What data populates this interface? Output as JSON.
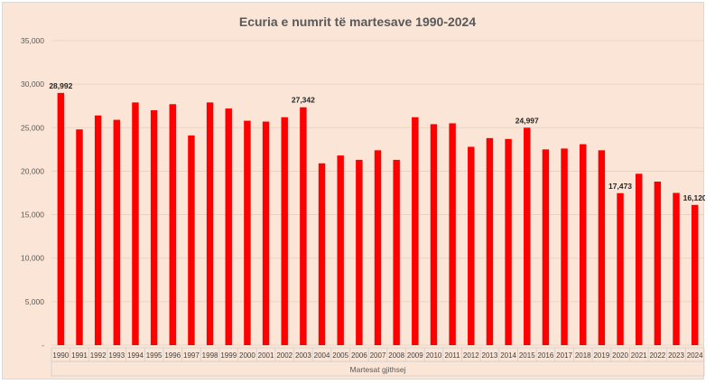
{
  "chart_data": {
    "type": "bar",
    "title": "Ecuria e numrit të martesave 1990-2024",
    "xlabel": "Martesat gjithsej",
    "ylabel": "",
    "ylim": [
      0,
      35000
    ],
    "yticks": [
      0,
      5000,
      10000,
      15000,
      20000,
      25000,
      30000,
      35000
    ],
    "ytick_labels": [
      "-",
      "5,000",
      "10,000",
      "15,000",
      "20,000",
      "25,000",
      "30,000",
      "35,000"
    ],
    "grid": true,
    "bar_color": "#ff0000",
    "categories": [
      "1990",
      "1991",
      "1992",
      "1993",
      "1994",
      "1995",
      "1996",
      "1997",
      "1998",
      "1999",
      "2000",
      "2001",
      "2002",
      "2003",
      "2004",
      "2005",
      "2006",
      "2007",
      "2008",
      "2009",
      "2010",
      "2011",
      "2012",
      "2013",
      "2014",
      "2015",
      "2016",
      "2017",
      "2018",
      "2019",
      "2020",
      "2021",
      "2022",
      "2023",
      "2024"
    ],
    "values": [
      28992,
      24800,
      26400,
      25900,
      27900,
      27000,
      27700,
      24100,
      27900,
      27200,
      25800,
      25700,
      26200,
      27342,
      20900,
      21800,
      21300,
      22400,
      21300,
      26200,
      25400,
      25500,
      22800,
      23800,
      23700,
      24997,
      22500,
      22600,
      23100,
      22400,
      17473,
      19700,
      18800,
      17500,
      16120
    ],
    "data_labels": [
      {
        "category": "1990",
        "text": "28,992"
      },
      {
        "category": "2003",
        "text": "27,342"
      },
      {
        "category": "2015",
        "text": "24,997"
      },
      {
        "category": "2020",
        "text": "17,473"
      },
      {
        "category": "2024",
        "text": "16,120"
      }
    ]
  }
}
